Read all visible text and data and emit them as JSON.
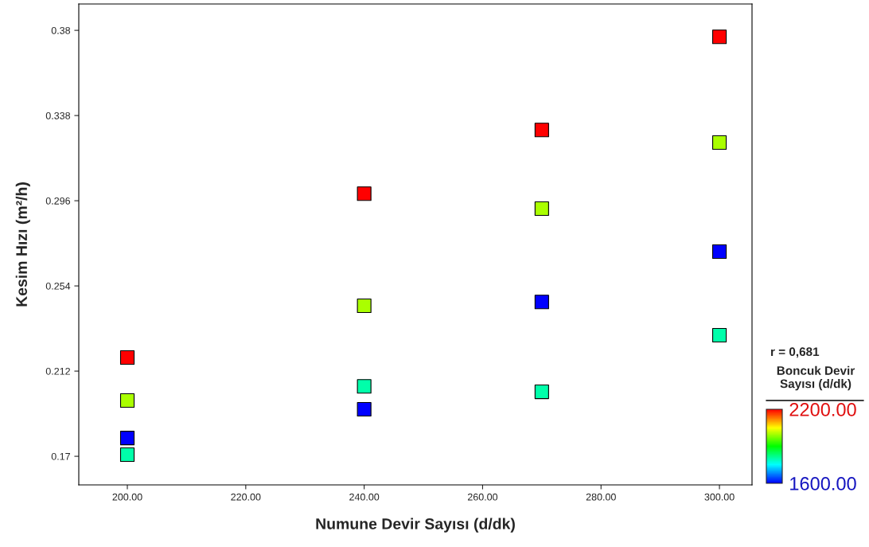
{
  "chart_data": {
    "type": "scatter",
    "xlabel": "Numune Devir Sayısı (d/dk)",
    "ylabel": "Kesim Hızı (m²/h)",
    "clabel": "Boncuk Devir\nSayısı (d/dk)",
    "annotations": [
      "r = 0,681"
    ],
    "series": [
      {
        "x": [
          200,
          200,
          200,
          200,
          240,
          240,
          240,
          240,
          270,
          270,
          270,
          270,
          300,
          300,
          300,
          300
        ],
        "values": [
          0.2187,
          0.1975,
          0.179,
          0.1708,
          0.2995,
          0.2442,
          0.2045,
          0.1932,
          0.3309,
          0.2921,
          0.2461,
          0.2018,
          0.3768,
          0.3247,
          0.2709,
          0.2297
        ],
        "cvalues": [
          2200,
          2000,
          1600,
          1800,
          2200,
          2000,
          1800,
          1600,
          2200,
          2000,
          1600,
          1800,
          2200,
          2000,
          1600,
          1800
        ]
      }
    ],
    "marker": "square",
    "xlim": [
      191.8,
      305.5
    ],
    "ylim": [
      0.1559,
      0.393
    ],
    "xticks": [
      {
        "value": 200,
        "label": "200.00"
      },
      {
        "value": 220,
        "label": "220.00"
      },
      {
        "value": 240,
        "label": "240.00"
      },
      {
        "value": 260,
        "label": "260.00"
      },
      {
        "value": 280,
        "label": "280.00"
      },
      {
        "value": 300,
        "label": "300.00"
      }
    ],
    "yticks": [
      0.17,
      0.212,
      0.254,
      0.296,
      0.338,
      0.38
    ],
    "clim": [
      1600,
      2200
    ],
    "cticks": [
      {
        "value": 1600,
        "label": "1600.00"
      },
      {
        "value": 2200,
        "label": "2200.00"
      }
    ],
    "grid": false,
    "legend": false
  }
}
